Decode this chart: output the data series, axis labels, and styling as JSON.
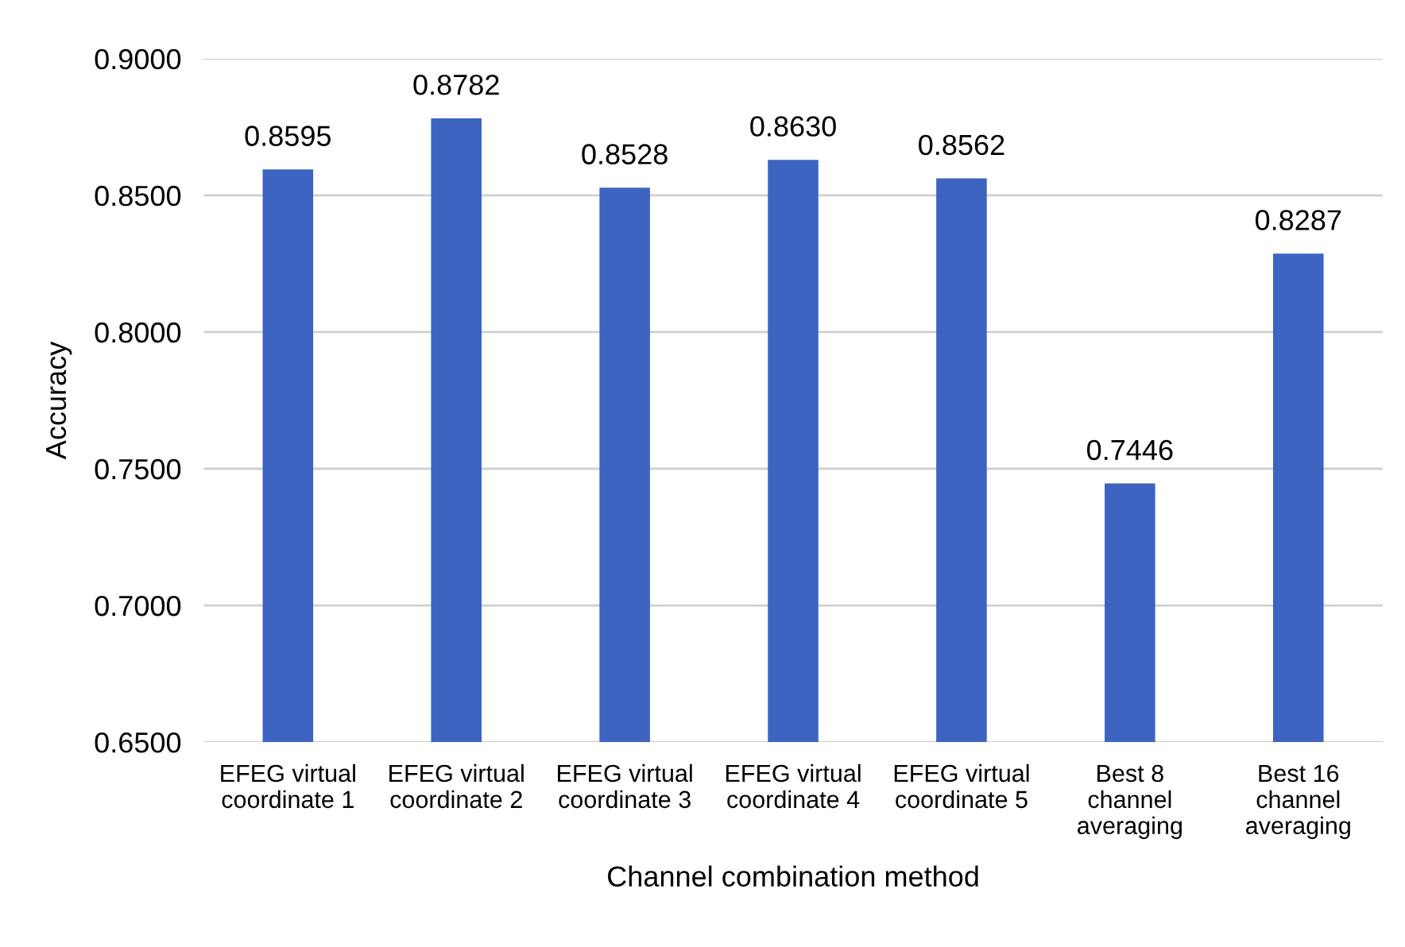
{
  "chart_data": {
    "type": "bar",
    "xlabel": "Channel combination method",
    "ylabel": "Accuracy",
    "categories": [
      "EFEG virtual\ncoordinate 1",
      "EFEG virtual\ncoordinate 2",
      "EFEG virtual\ncoordinate 3",
      "EFEG virtual\ncoordinate 4",
      "EFEG virtual\ncoordinate 5",
      "Best 8\nchannel\naveraging",
      "Best 16\nchannel\naveraging"
    ],
    "values": [
      0.8595,
      0.8782,
      0.8528,
      0.863,
      0.8562,
      0.7446,
      0.8287
    ],
    "value_labels": [
      "0.8595",
      "0.8782",
      "0.8528",
      "0.8630",
      "0.8562",
      "0.7446",
      "0.8287"
    ],
    "color": "#3c64c0",
    "ylim": [
      0.65,
      0.9
    ],
    "yticks": [
      {
        "value": 0.65,
        "label": "0.6500"
      },
      {
        "value": 0.7,
        "label": "0.7000"
      },
      {
        "value": 0.75,
        "label": "0.7500"
      },
      {
        "value": 0.8,
        "label": "0.8000"
      },
      {
        "value": 0.85,
        "label": "0.8500"
      },
      {
        "value": 0.9,
        "label": "0.9000"
      }
    ],
    "grid": "y"
  }
}
